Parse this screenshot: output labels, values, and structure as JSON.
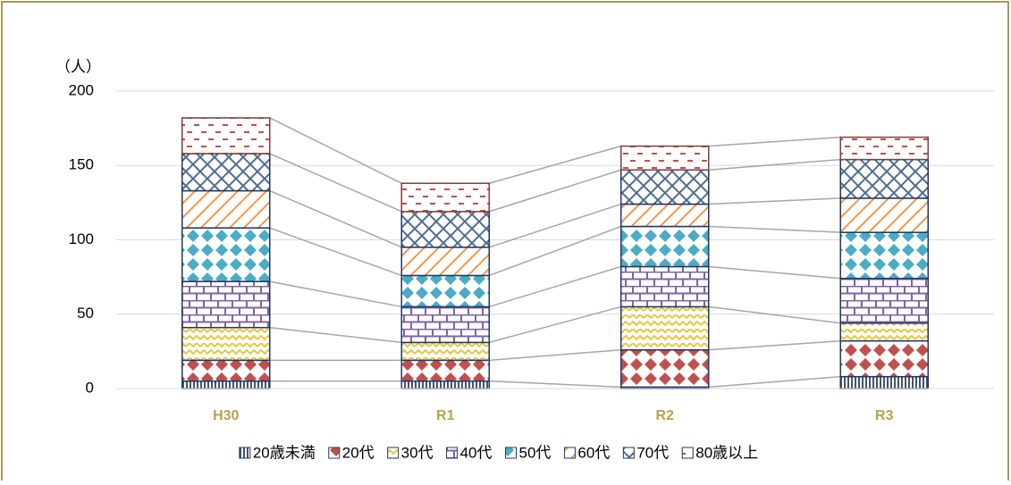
{
  "chart_data": {
    "type": "stacked-bar",
    "y_unit_label": "（人）",
    "categories": [
      "H30",
      "R1",
      "R2",
      "R3"
    ],
    "series": [
      {
        "name": "20歳未満",
        "color": "#44546a",
        "values": [
          5,
          5,
          1,
          8
        ]
      },
      {
        "name": "20代",
        "color": "#c0504d",
        "values": [
          14,
          14,
          25,
          24
        ]
      },
      {
        "name": "30代",
        "color": "#e8c640",
        "values": [
          22,
          12,
          29,
          12
        ]
      },
      {
        "name": "40代",
        "color": "#8064a2",
        "values": [
          31,
          24,
          27,
          30
        ]
      },
      {
        "name": "50代",
        "color": "#4bacc6",
        "values": [
          36,
          21,
          27,
          31
        ]
      },
      {
        "name": "60代",
        "color": "#f79646",
        "values": [
          25,
          19,
          15,
          23
        ]
      },
      {
        "name": "70代",
        "color": "#4f6d8f",
        "values": [
          25,
          24,
          23,
          26
        ]
      },
      {
        "name": "80歳以上",
        "color": "#c0504d",
        "values": [
          24,
          19,
          16,
          15
        ]
      }
    ],
    "ylim": [
      0,
      200
    ],
    "yticks": [
      0,
      50,
      100,
      150,
      200
    ],
    "grid": true,
    "connector_lines": true,
    "legend": "bottom"
  }
}
